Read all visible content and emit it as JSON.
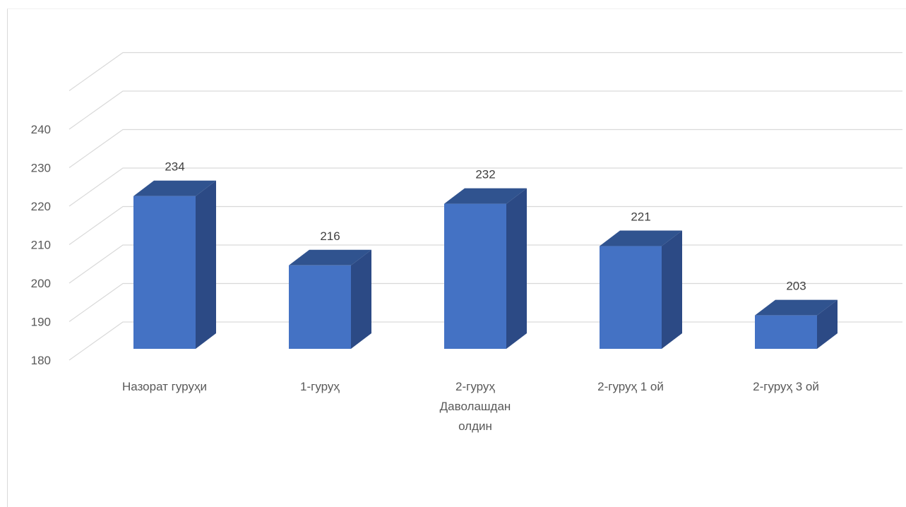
{
  "chart_data": {
    "type": "bar",
    "title": "",
    "xlabel": "",
    "ylabel": "",
    "ylim": [
      180,
      240
    ],
    "yticks": [
      180,
      190,
      200,
      210,
      220,
      230,
      240
    ],
    "categories": [
      [
        "Назорат гуруҳи"
      ],
      [
        "1-гуруҳ"
      ],
      [
        "2-гуруҳ",
        "Даволашдан",
        "олдин"
      ],
      [
        "2-гуруҳ 1 ой"
      ],
      [
        "2-гуруҳ 3 ой"
      ]
    ],
    "values": [
      234,
      216,
      232,
      221,
      203
    ],
    "data_labels": [
      "234",
      "216",
      "232",
      "221",
      "203"
    ],
    "grid": true,
    "legend": "none",
    "colors": {
      "bar_front": "#4472c4",
      "bar_side": "#2c4a85",
      "bar_top": "#30538f",
      "gridline": "#d9d9d9",
      "text": "#595959"
    }
  }
}
